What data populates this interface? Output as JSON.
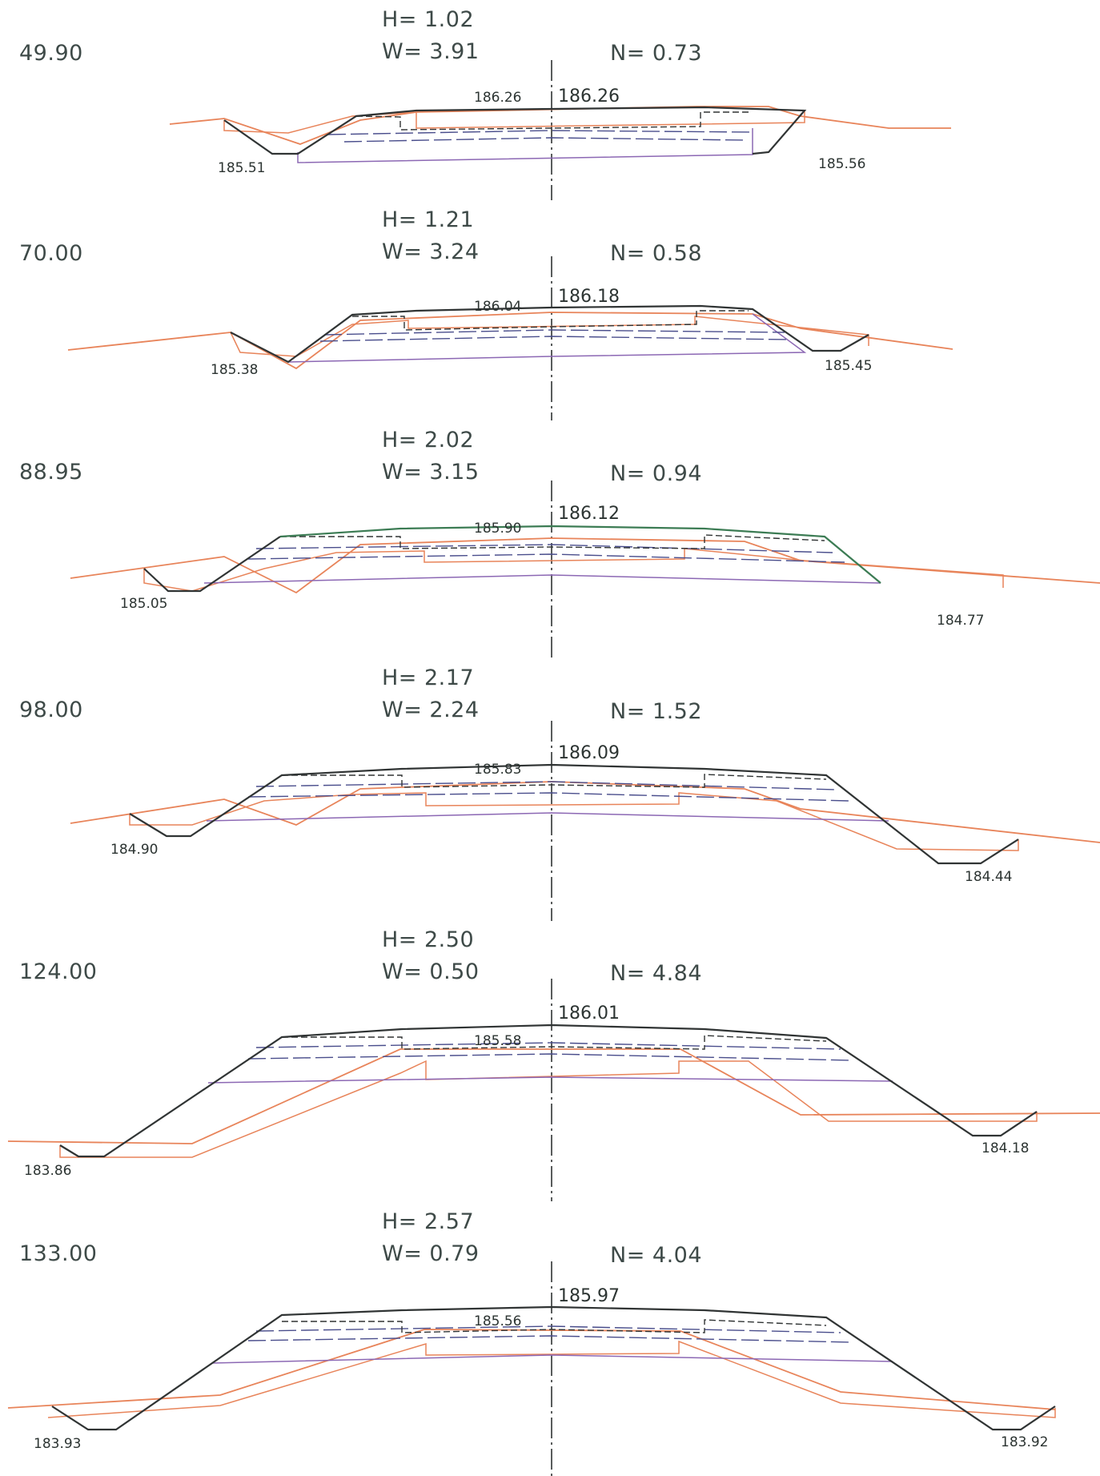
{
  "sections": [
    {
      "station": "49.90",
      "h_label": "H= 1.02",
      "w_label": "W= 3.91",
      "n_label": "N= 0.73",
      "elev_center": "186.26",
      "elev_top_left": "186.26",
      "elev_left": "185.51",
      "elev_right": "185.56"
    },
    {
      "station": "70.00",
      "h_label": "H= 1.21",
      "w_label": "W= 3.24",
      "n_label": "N= 0.58",
      "elev_center": "186.18",
      "elev_top_left": "186.04",
      "elev_left": "185.38",
      "elev_right": "185.45"
    },
    {
      "station": "88.95",
      "h_label": "H= 2.02",
      "w_label": "W= 3.15",
      "n_label": "N= 0.94",
      "elev_center": "186.12",
      "elev_top_left": "185.90",
      "elev_left": "185.05",
      "elev_right": "184.77"
    },
    {
      "station": "98.00",
      "h_label": "H= 2.17",
      "w_label": "W= 2.24",
      "n_label": "N= 1.52",
      "elev_center": "186.09",
      "elev_top_left": "185.83",
      "elev_left": "184.90",
      "elev_right": "184.44"
    },
    {
      "station": "124.00",
      "h_label": "H= 2.50",
      "w_label": "W= 0.50",
      "n_label": "N= 4.84",
      "elev_center": "186.01",
      "elev_top_left": "185.58",
      "elev_left": "183.86",
      "elev_right": "184.18"
    },
    {
      "station": "133.00",
      "h_label": "H= 2.57",
      "w_label": "W= 0.79",
      "n_label": "N= 4.04",
      "elev_center": "185.97",
      "elev_top_left": "185.56",
      "elev_left": "183.93",
      "elev_right": "183.92"
    }
  ],
  "colors": {
    "design": "#303434",
    "ground": "#e8845a",
    "pavement": "#4a4e8c",
    "subgrade": "#8c68b4",
    "green": "#3c7c54"
  }
}
